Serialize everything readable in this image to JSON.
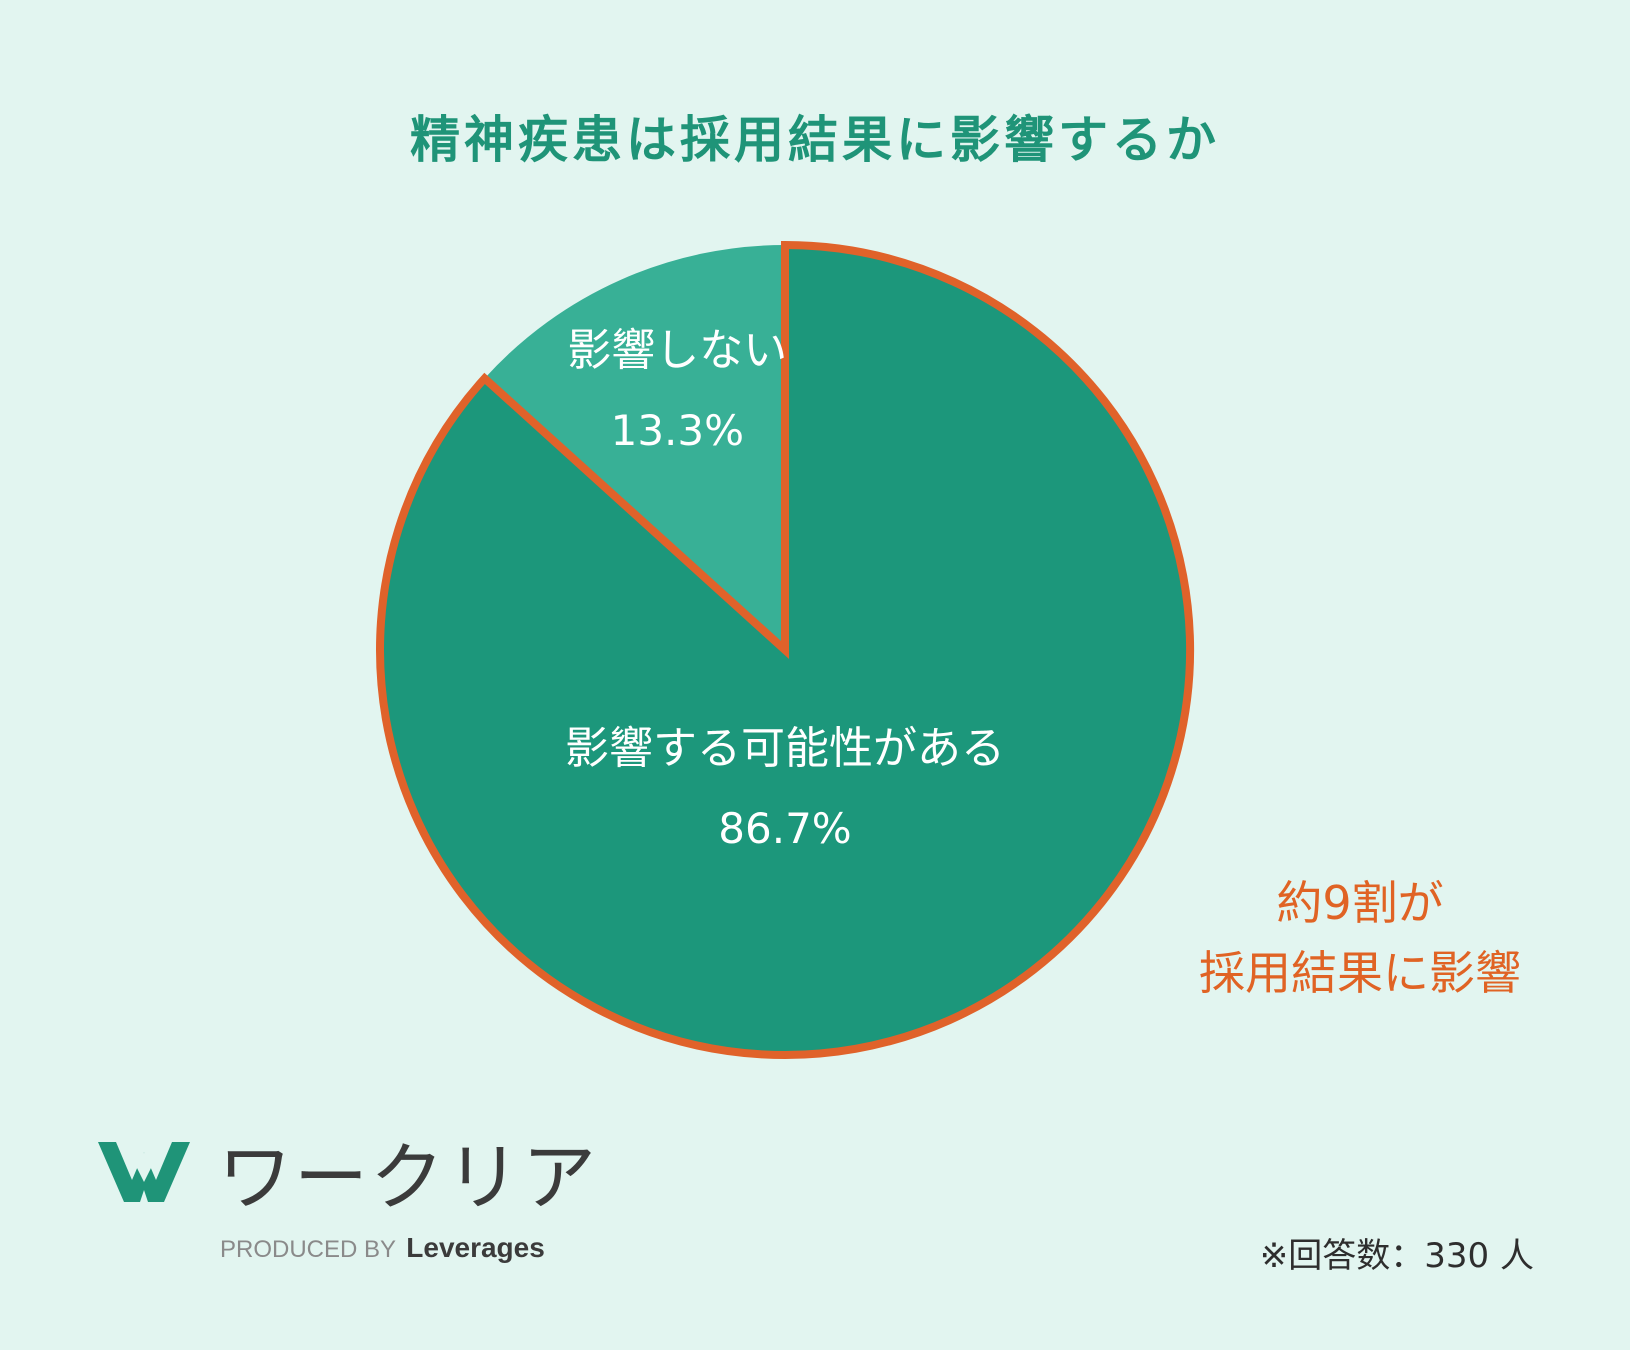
{
  "title": "精神疾患は採用結果に影響するか",
  "chart_data": {
    "type": "pie",
    "title": "精神疾患は採用結果に影響するか",
    "slices": [
      {
        "label": "影響しない",
        "value": 13.3,
        "display": "13.3%",
        "color": "#38b096"
      },
      {
        "label": "影響する可能性がある",
        "value": 86.7,
        "display": "86.7%",
        "color": "#1c977b",
        "highlighted": true
      }
    ],
    "start_angle": "12 o'clock",
    "highlight_color": "#e0622a"
  },
  "callout": {
    "line1": "約9割が",
    "line2": "採用結果に影響"
  },
  "brand": {
    "name": "ワークリア",
    "produced_by": "PRODUCED BY",
    "company": "Leverages"
  },
  "note": "※回答数：330 人",
  "colors": {
    "background": "#e2f5f0",
    "title": "#1f9478",
    "accent": "#e06324"
  }
}
